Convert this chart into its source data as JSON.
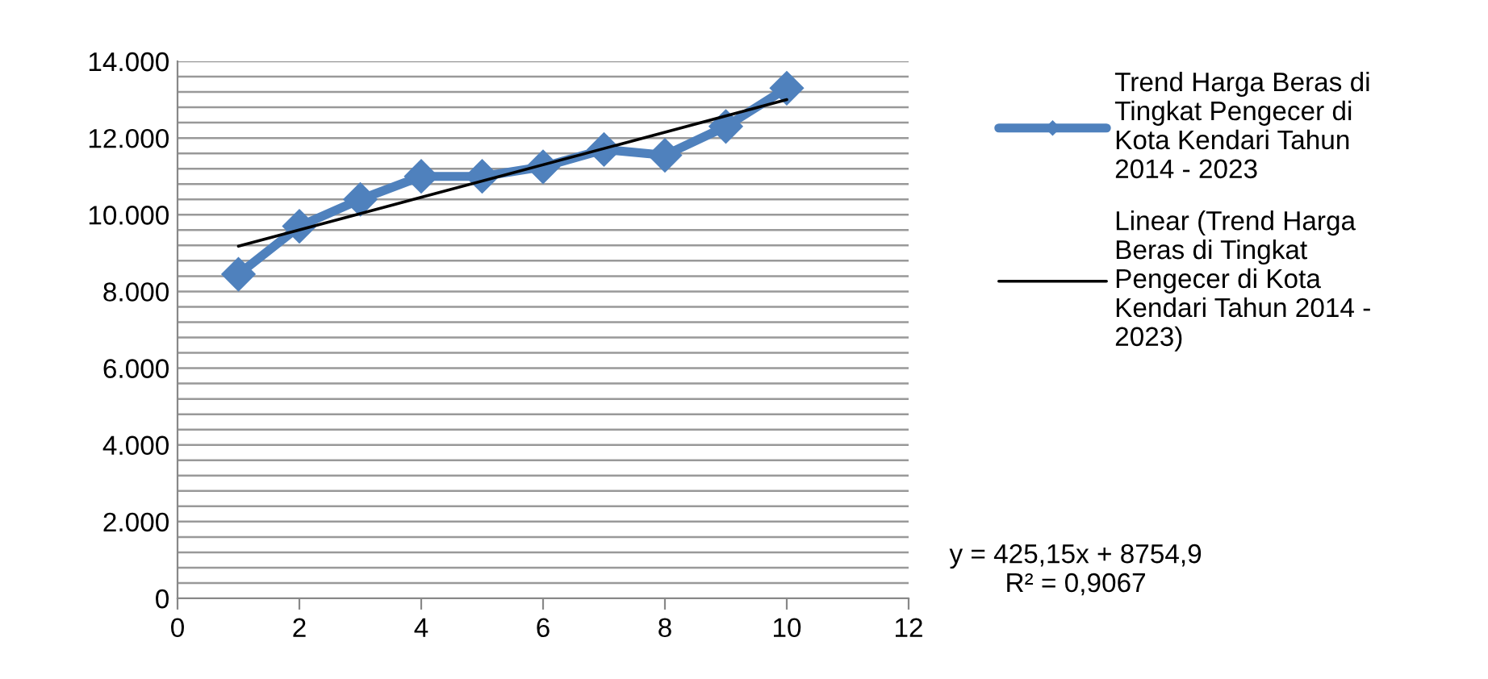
{
  "chart_data": {
    "type": "line",
    "x": [
      1,
      2,
      3,
      4,
      5,
      6,
      7,
      8,
      9,
      10
    ],
    "series": [
      {
        "name": "Trend Harga Beras di Tingkat Pengecer di Kota Kendari Tahun 2014 - 2023",
        "color": "#4f81bd",
        "values": [
          8450,
          9700,
          10400,
          11000,
          11000,
          11250,
          11700,
          11550,
          12300,
          13300
        ]
      },
      {
        "name": "Linear (Trend Harga Beras di Tingkat Pengecer di Kota Kendari Tahun 2014 - 2023)",
        "color": "#000000",
        "x": [
          1,
          10
        ],
        "values": [
          9180,
          13000
        ],
        "marker": "none"
      }
    ],
    "xlim": [
      0,
      12
    ],
    "xticks": [
      0,
      2,
      4,
      6,
      8,
      10,
      12
    ],
    "ylim": [
      0,
      14000
    ],
    "yticks": [
      {
        "value": 0,
        "label": "0"
      },
      {
        "value": 400,
        "label": null
      },
      {
        "value": 800,
        "label": null
      },
      {
        "value": 1200,
        "label": null
      },
      {
        "value": 1600,
        "label": null
      },
      {
        "value": 2000,
        "label": "2.000"
      },
      {
        "value": 2400,
        "label": null
      },
      {
        "value": 2800,
        "label": null
      },
      {
        "value": 3200,
        "label": null
      },
      {
        "value": 3600,
        "label": null
      },
      {
        "value": 4000,
        "label": "4.000"
      },
      {
        "value": 4400,
        "label": null
      },
      {
        "value": 4800,
        "label": null
      },
      {
        "value": 5200,
        "label": null
      },
      {
        "value": 5600,
        "label": null
      },
      {
        "value": 6000,
        "label": "6.000"
      },
      {
        "value": 6400,
        "label": null
      },
      {
        "value": 6800,
        "label": null
      },
      {
        "value": 7200,
        "label": null
      },
      {
        "value": 7600,
        "label": null
      },
      {
        "value": 8000,
        "label": "8.000"
      },
      {
        "value": 8400,
        "label": null
      },
      {
        "value": 8800,
        "label": null
      },
      {
        "value": 9200,
        "label": null
      },
      {
        "value": 9600,
        "label": null
      },
      {
        "value": 10000,
        "label": "10.000"
      },
      {
        "value": 10400,
        "label": null
      },
      {
        "value": 10800,
        "label": null
      },
      {
        "value": 11200,
        "label": null
      },
      {
        "value": 11600,
        "label": null
      },
      {
        "value": 12000,
        "label": "12.000"
      },
      {
        "value": 12400,
        "label": null
      },
      {
        "value": 12800,
        "label": null
      },
      {
        "value": 13200,
        "label": null
      },
      {
        "value": 13600,
        "label": null
      },
      {
        "value": 14000,
        "label": "14.000"
      }
    ],
    "grid": "y",
    "legend": "right",
    "marker": "diamond",
    "line_style": "solid",
    "annotations": [
      "y = 425,15x + 8754,9\nR² = 0,9067"
    ]
  }
}
